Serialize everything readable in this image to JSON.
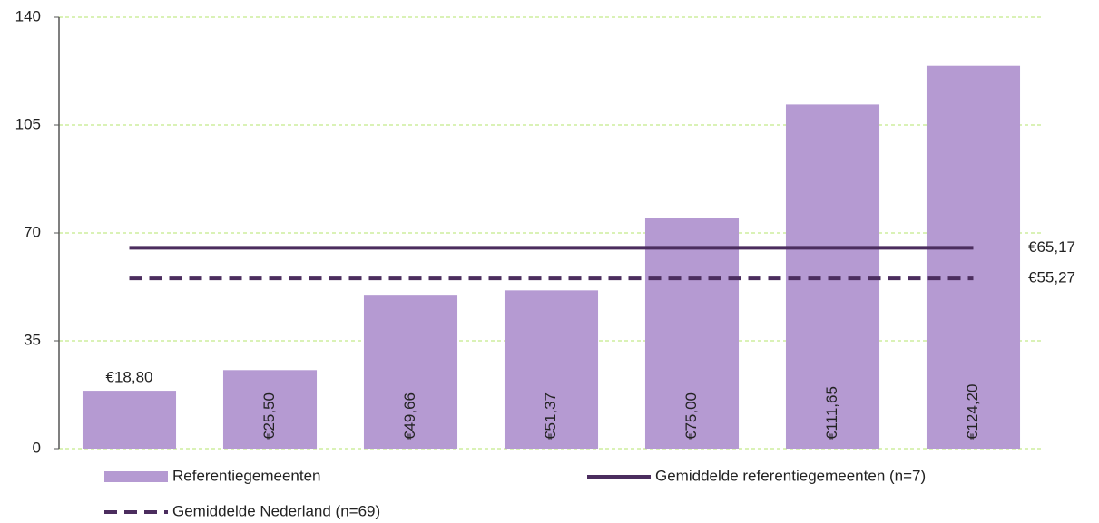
{
  "chart_data": {
    "type": "bar",
    "categories": [
      null,
      null,
      null,
      null,
      null,
      null,
      null
    ],
    "series": [
      {
        "name": "Referentiegemeenten",
        "color": "#b59ad2",
        "values": [
          18.8,
          25.5,
          49.66,
          51.37,
          75.0,
          111.65,
          124.2
        ],
        "value_labels": [
          "€18,80",
          "€25,50",
          "€49,66",
          "€51,37",
          "€75,00",
          "€111,65",
          "€124,20"
        ]
      }
    ],
    "reference_lines": [
      {
        "name": "Gemiddelde referentiegemeenten (n=7)",
        "color": "#4b2d5e",
        "style": "solid",
        "value": 65.17,
        "value_label": "€65,17"
      },
      {
        "name": "Gemiddelde Nederland (n=69)",
        "color": "#4b2d5e",
        "style": "dashed",
        "value": 55.27,
        "value_label": "€55,27"
      }
    ],
    "ylim": [
      0,
      140
    ],
    "yticks": [
      0,
      35,
      70,
      105,
      140
    ],
    "grid": true,
    "grid_color": "#b6e46e"
  }
}
